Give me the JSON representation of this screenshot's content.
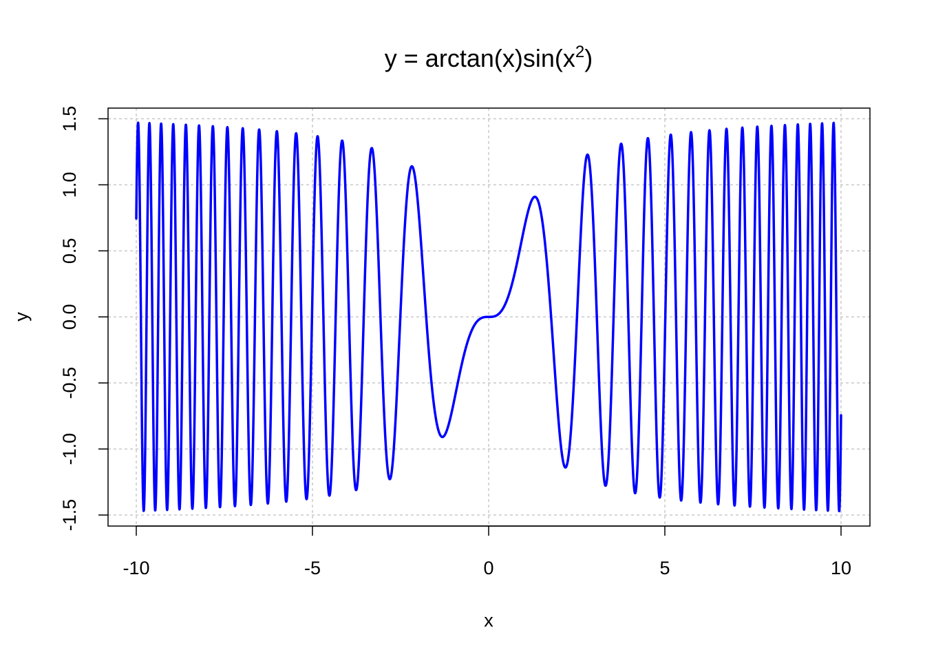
{
  "chart_data": {
    "type": "line",
    "title": "y = arctan(x)sin(x",
    "title_superscript": "2",
    "title_end": ")",
    "xlabel": "x",
    "ylabel": "y",
    "xlim": [
      -10,
      10
    ],
    "ylim": [
      -1.5,
      1.5
    ],
    "x_ticks": [
      -10,
      -5,
      0,
      5,
      10
    ],
    "x_tick_labels": [
      "-10",
      "-5",
      "0",
      "5",
      "10"
    ],
    "y_ticks": [
      -1.5,
      -1.0,
      -0.5,
      0.0,
      0.5,
      1.0,
      1.5
    ],
    "y_tick_labels": [
      "-1.5",
      "-1.0",
      "-0.5",
      "0.0",
      "0.5",
      "1.0",
      "1.5"
    ],
    "grid": true,
    "series": [
      {
        "function": "arctan(x)*sin(x^2)",
        "x_range": [
          -10,
          10
        ],
        "color": "#0000ff"
      }
    ],
    "colors": {
      "line": "#0000ff",
      "grid": "#c8c8c8",
      "axis": "#000000"
    }
  }
}
